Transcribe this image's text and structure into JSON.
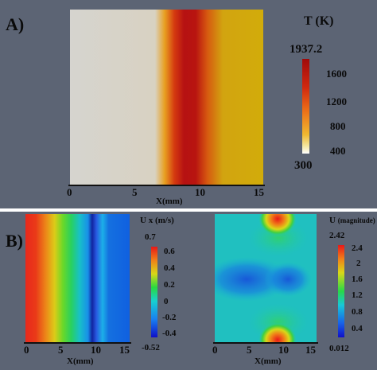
{
  "panel_a": {
    "label": "A)",
    "xlabel": "X(mm)",
    "x_ticks": [
      "0",
      "5",
      "10",
      "15"
    ],
    "colorbar": {
      "title": "T (K)",
      "max_label": "1937.2",
      "min_label": "300",
      "ticks": [
        "1600",
        "1200",
        "800",
        "400"
      ]
    }
  },
  "panel_b_left": {
    "label": "B)",
    "xlabel": "X(mm)",
    "x_ticks": [
      "0",
      "5",
      "10",
      "15"
    ],
    "colorbar": {
      "title": "U x (m/s)",
      "max_label": "0.7",
      "min_label": "-0.52",
      "ticks": [
        "0.6",
        "0.4",
        "0.2",
        "0",
        "-0.2",
        "-0.4"
      ]
    }
  },
  "panel_b_right": {
    "xlabel": "X(mm)",
    "x_ticks": [
      "0",
      "5",
      "10",
      "15"
    ],
    "colorbar": {
      "title_main": "U",
      "title_sub": "(magnitude)",
      "max_label": "2.42",
      "min_label": "0.012",
      "ticks": [
        "2.4",
        "2",
        "1.6",
        "1.2",
        "0.8",
        "0.4"
      ]
    }
  }
}
